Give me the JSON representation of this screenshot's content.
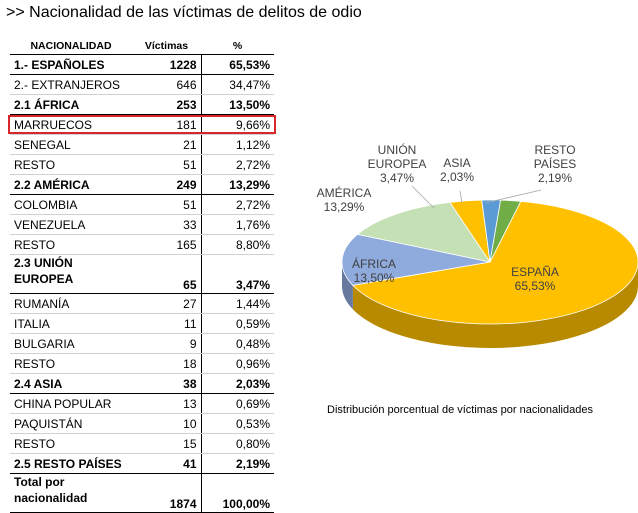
{
  "title": ">> Nacionalidad de las víctimas de delitos de odio",
  "table": {
    "headers": [
      "NACIONALIDAD",
      "Víctimas",
      "%"
    ],
    "rows": [
      {
        "label": "1.- ESPAÑOLES",
        "victims": "1228",
        "pct": "65,53%",
        "bold": true
      },
      {
        "label": "2.- EXTRANJEROS",
        "victims": "646",
        "pct": "34,47%",
        "bold": false
      },
      {
        "label": "2.1 ÁFRICA",
        "victims": "253",
        "pct": "13,50%",
        "bold": true
      },
      {
        "label": "MARRUECOS",
        "victims": "181",
        "pct": "9,66%",
        "bold": false
      },
      {
        "label": "SENEGAL",
        "victims": "21",
        "pct": "1,12%",
        "bold": false
      },
      {
        "label": "RESTO",
        "victims": "51",
        "pct": "2,72%",
        "bold": false
      },
      {
        "label": "2.2 AMÉRICA",
        "victims": "249",
        "pct": "13,29%",
        "bold": true
      },
      {
        "label": "COLOMBIA",
        "victims": "51",
        "pct": "2,72%",
        "bold": false
      },
      {
        "label": "VENEZUELA",
        "victims": "33",
        "pct": "1,76%",
        "bold": false
      },
      {
        "label": "RESTO",
        "victims": "165",
        "pct": "8,80%",
        "bold": false
      },
      {
        "label_lines": [
          "2.3 UNIÓN",
          "EUROPEA"
        ],
        "victims": "65",
        "pct": "3,47%",
        "bold": true,
        "tall": true
      },
      {
        "label": "RUMANÍA",
        "victims": "27",
        "pct": "1,44%",
        "bold": false
      },
      {
        "label": "ITALIA",
        "victims": "11",
        "pct": "0,59%",
        "bold": false
      },
      {
        "label": "BULGARIA",
        "victims": "9",
        "pct": "0,48%",
        "bold": false
      },
      {
        "label": "RESTO",
        "victims": "18",
        "pct": "0,96%",
        "bold": false
      },
      {
        "label": "2.4 ASIA",
        "victims": "38",
        "pct": "2,03%",
        "bold": true
      },
      {
        "label": "CHINA POPULAR",
        "victims": "13",
        "pct": "0,69%",
        "bold": false
      },
      {
        "label": "PAQUISTÁN",
        "victims": "10",
        "pct": "0,53%",
        "bold": false
      },
      {
        "label": "RESTO",
        "victims": "15",
        "pct": "0,80%",
        "bold": false
      },
      {
        "label": "2.5 RESTO PAÍSES",
        "victims": "41",
        "pct": "2,19%",
        "bold": true
      },
      {
        "label_lines": [
          "Total por",
          "nacionalidad"
        ],
        "victims": "1874",
        "pct": "100,00%",
        "bold": true,
        "tall": true,
        "total": true
      }
    ]
  },
  "chart_data": {
    "type": "pie",
    "title": "Distribución porcentual de víctimas por nacionalidades",
    "slices": [
      {
        "name": "ESPAÑA",
        "value": 65.53,
        "label": "65,53%",
        "color": "#ffc000"
      },
      {
        "name": "ÁFRICA",
        "value": 13.5,
        "label": "13,50%",
        "color": "#8faadc"
      },
      {
        "name": "AMÉRICA",
        "value": 13.29,
        "label": "13,29%",
        "color": "#c5e0b4"
      },
      {
        "name_lines": [
          "UNIÓN",
          "EUROPEA"
        ],
        "value": 3.47,
        "label": "3,47%",
        "color": "#ffc000"
      },
      {
        "name": "ASIA",
        "value": 2.03,
        "label": "2,03%",
        "color": "#5b9bd5"
      },
      {
        "name_lines": [
          "RESTO",
          "PAÍSES"
        ],
        "value": 2.19,
        "label": "2,19%",
        "color": "#70ad47"
      }
    ]
  }
}
